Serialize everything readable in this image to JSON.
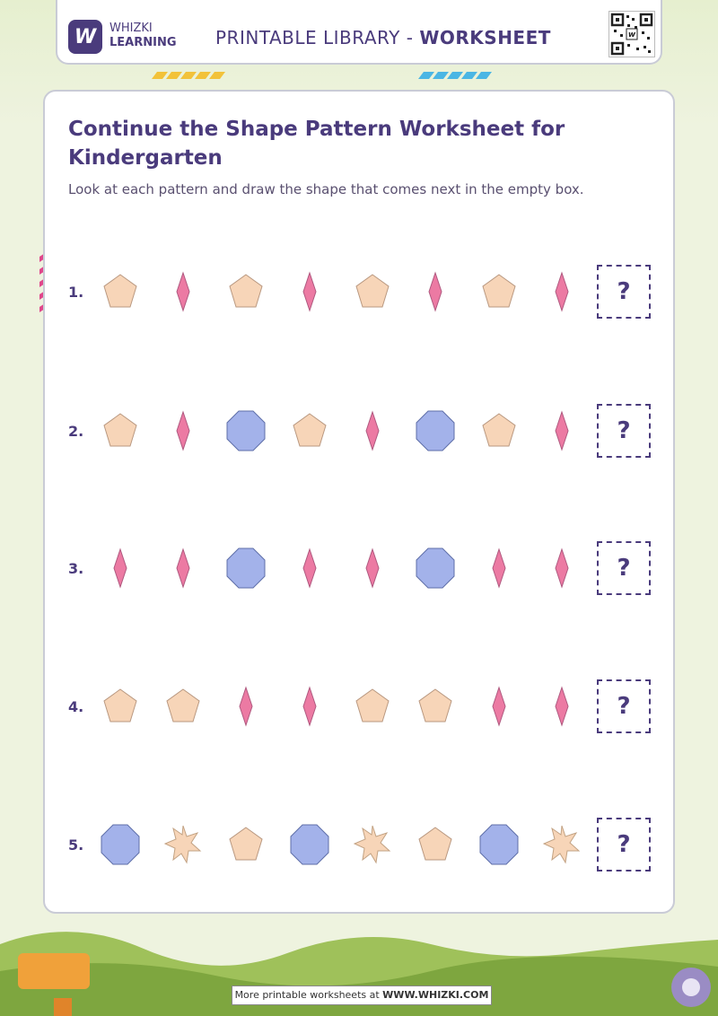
{
  "header": {
    "logo_glyph": "W",
    "brand_line1": "WHIZKI",
    "brand_line2": "LEARNING",
    "title_prefix": "PRINTABLE LIBRARY - ",
    "title_bold": "WORKSHEET",
    "qr_icon": "qr-code-icon"
  },
  "worksheet": {
    "title": "Continue the Shape Pattern Worksheet for Kindergarten",
    "instructions": "Look at each pattern and draw the shape that comes next in the empty box.",
    "answer_placeholder": "?",
    "rows": [
      {
        "number": "1.",
        "shapes": [
          "pentagon",
          "diamond",
          "pentagon",
          "diamond",
          "pentagon",
          "diamond",
          "pentagon",
          "diamond"
        ]
      },
      {
        "number": "2.",
        "shapes": [
          "pentagon",
          "diamond",
          "octagon",
          "pentagon",
          "diamond",
          "octagon",
          "pentagon",
          "diamond"
        ]
      },
      {
        "number": "3.",
        "shapes": [
          "diamond",
          "diamond",
          "octagon",
          "diamond",
          "diamond",
          "octagon",
          "diamond",
          "diamond"
        ]
      },
      {
        "number": "4.",
        "shapes": [
          "pentagon",
          "pentagon",
          "diamond",
          "diamond",
          "pentagon",
          "pentagon",
          "diamond",
          "diamond"
        ]
      },
      {
        "number": "5.",
        "shapes": [
          "octagon",
          "star",
          "pentagon",
          "octagon",
          "star",
          "pentagon",
          "octagon",
          "star"
        ]
      }
    ]
  },
  "colors": {
    "pentagon": "#f7d5b8",
    "diamond": "#ec7aa3",
    "octagon": "#a3b2ea",
    "star": "#f7d5b8",
    "accent": "#4a3b7c"
  },
  "footer": {
    "prefix": "More printable worksheets at ",
    "site": "WWW.WHIZKI.COM"
  }
}
